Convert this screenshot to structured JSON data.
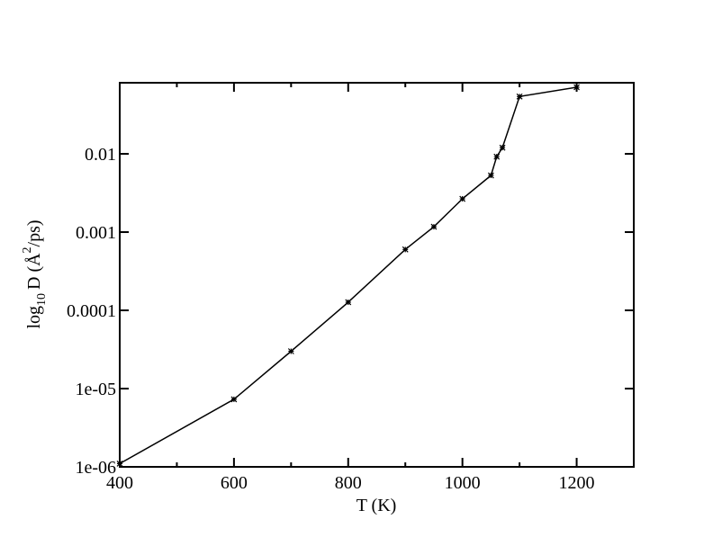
{
  "chart_data": {
    "type": "line",
    "x_label": "T (K)",
    "y_label": {
      "prefix": "log",
      "sub": "10",
      "middle": "D (Å",
      "sup": "2",
      "suffix": "/ps)"
    },
    "x": [
      400,
      600,
      700,
      800,
      900,
      950,
      1000,
      1050,
      1060,
      1070,
      1100,
      1200
    ],
    "series": [
      {
        "color": "#000000",
        "values": [
          1.1e-06,
          7.3e-06,
          3e-05,
          0.000127,
          0.0006,
          0.00117,
          0.00266,
          0.0053,
          0.0092,
          0.012,
          0.054,
          0.071
        ]
      }
    ],
    "xlim": [
      400,
      1300
    ],
    "xticks": [
      400,
      600,
      800,
      1000,
      1200
    ],
    "xminorticks": [
      500,
      700,
      900,
      1100,
      1300
    ],
    "ylim": [
      1e-06,
      0.081
    ],
    "log_y": true,
    "yticks": [
      {
        "value": 1e-06,
        "label": "1e-06"
      },
      {
        "value": 1e-05,
        "label": "1e-05"
      },
      0.0001,
      0.001,
      0.01
    ]
  }
}
